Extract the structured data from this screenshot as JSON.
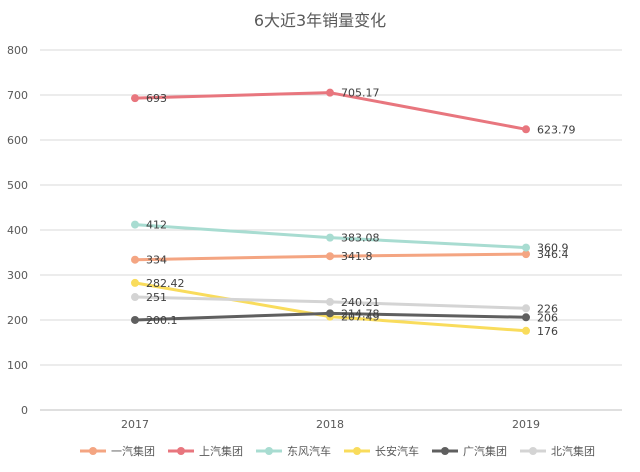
{
  "chart_data": {
    "type": "line",
    "title": "6大近3年销量变化",
    "xlabel": "",
    "ylabel": "",
    "categories": [
      "2017",
      "2018",
      "2019"
    ],
    "ylim": [
      0,
      800
    ],
    "yticks": [
      0,
      100,
      200,
      300,
      400,
      500,
      600,
      700,
      800
    ],
    "grid": true,
    "legend_position": "bottom",
    "series": [
      {
        "name": "一汽集团",
        "color": "#f4a582",
        "values": [
          334,
          341.8,
          346.4
        ],
        "labels": [
          "334",
          "341.8",
          "346.4"
        ]
      },
      {
        "name": "上汽集团",
        "color": "#e8767e",
        "values": [
          693,
          705.17,
          623.79
        ],
        "labels": [
          "693",
          "705.17",
          "623.79"
        ]
      },
      {
        "name": "东风汽车",
        "color": "#a8dcd1",
        "values": [
          412,
          383.08,
          360.9
        ],
        "labels": [
          "412",
          "383.08",
          "360.9"
        ]
      },
      {
        "name": "长安汽车",
        "color": "#f9dc5c",
        "values": [
          282.42,
          207.49,
          176
        ],
        "labels": [
          "282.42",
          "207.49",
          "176"
        ]
      },
      {
        "name": "广汽集团",
        "color": "#5f5f5f",
        "values": [
          200.1,
          214.78,
          206
        ],
        "labels": [
          "200.1",
          "214.78",
          "206"
        ]
      },
      {
        "name": "北汽集团",
        "color": "#d4d4d4",
        "values": [
          251,
          240.21,
          226
        ],
        "labels": [
          "251",
          "240.21",
          "226"
        ]
      }
    ]
  }
}
